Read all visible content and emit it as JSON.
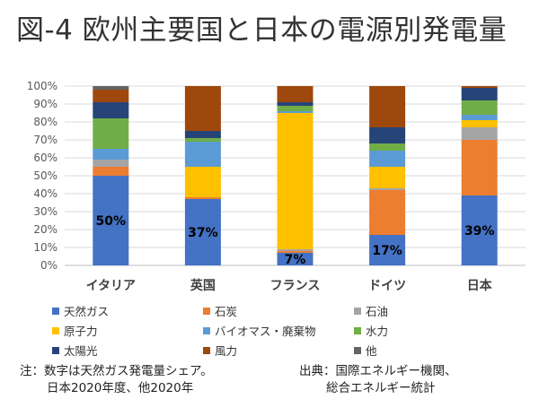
{
  "title": "図-4 欧州主要国と日本の電源別発電量",
  "chart_data": {
    "type": "stacked-bar",
    "categories": [
      "イタリア",
      "英国",
      "フランス",
      "ドイツ",
      "日本"
    ],
    "ylim": [
      0,
      100
    ],
    "yticks": [
      "0%",
      "10%",
      "20%",
      "30%",
      "40%",
      "50%",
      "60%",
      "70%",
      "80%",
      "90%",
      "100%"
    ],
    "series": [
      {
        "name": "天然ガス",
        "color": "#4472c4",
        "values": [
          50,
          37,
          7,
          17,
          39
        ]
      },
      {
        "name": "石炭",
        "color": "#ed7d31",
        "values": [
          5,
          1,
          1,
          25,
          31
        ]
      },
      {
        "name": "石油",
        "color": "#a5a5a5",
        "values": [
          4,
          0,
          1,
          1,
          7
        ]
      },
      {
        "name": "原子力",
        "color": "#ffc000",
        "values": [
          0,
          17,
          76,
          12,
          4
        ]
      },
      {
        "name": "バイオマス・廃棄物",
        "color": "#5b9bd5",
        "values": [
          6,
          14,
          1,
          9,
          3
        ]
      },
      {
        "name": "水力",
        "color": "#70ad47",
        "values": [
          17,
          2,
          3,
          4,
          8
        ]
      },
      {
        "name": "太陽光",
        "color": "#264478",
        "values": [
          9,
          4,
          2,
          9,
          7
        ]
      },
      {
        "name": "風力",
        "color": "#9e480e",
        "values": [
          7,
          25,
          9,
          23,
          1
        ]
      },
      {
        "name": "他",
        "color": "#636363",
        "values": [
          2,
          0,
          0,
          0,
          0
        ]
      }
    ],
    "data_labels": [
      "50%",
      "37%",
      "7%",
      "17%",
      "39%"
    ]
  },
  "legend_columns": 3,
  "note_left": {
    "line1": "注：数字は天然ガス発電量シェア。",
    "line2": "日本2020年度、他2020年"
  },
  "note_right": {
    "line1": "出典：国際エネルギー機関、",
    "line2": "総合エネルギー統計"
  }
}
